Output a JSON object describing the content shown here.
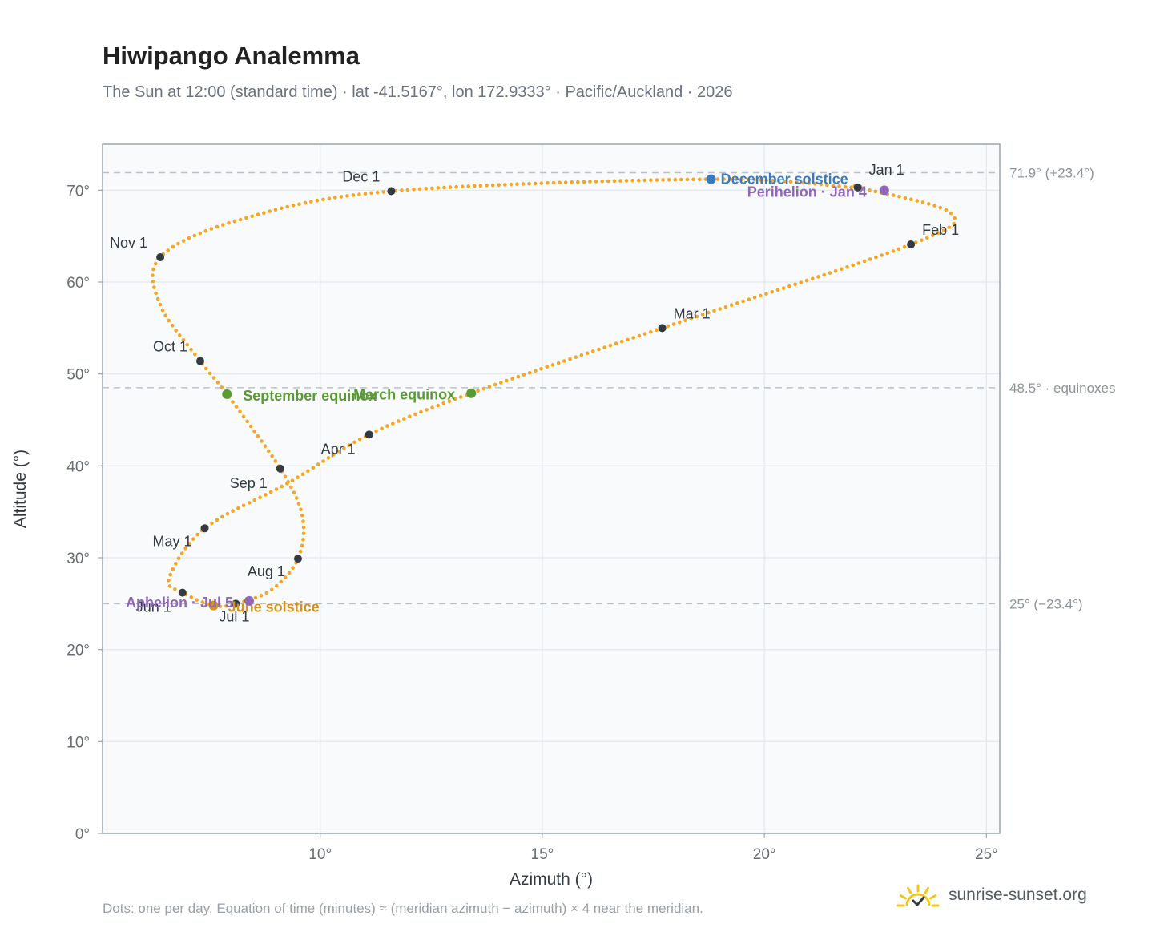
{
  "header": {
    "title": "Hiwipango Analemma",
    "subtitle": "The Sun at 12:00 (standard time) · lat -41.5167°, lon 172.9333° · Pacific/Auckland · 2026"
  },
  "footer": {
    "note": "Dots: one per day. Equation of time (minutes) ≈ (meridian azimuth − azimuth) × 4 near the meridian.",
    "brand": "sunrise-sunset.org"
  },
  "colors": {
    "path": "#f5a623",
    "month_dot": "#333a42",
    "equinox": "#5a9a34",
    "june_solstice": "#d4911c",
    "december_solstice": "#3a7abf",
    "apsis": "#8f68b8",
    "grid": "#e3e8ee",
    "plot_bg": "#f8fafc",
    "frame": "#9aa4b2",
    "ref_line": "#b8c2cd",
    "brand_sun": "#f5c518"
  },
  "chart_data": {
    "type": "scatter",
    "xlabel": "Azimuth (°)",
    "ylabel": "Altitude (°)",
    "xlim": [
      5.1,
      25.3
    ],
    "ylim": [
      0,
      75
    ],
    "xticks": [
      10,
      15,
      20,
      25
    ],
    "yticks": [
      0,
      10,
      20,
      30,
      40,
      50,
      60,
      70
    ],
    "x_tick_format": "{v}°",
    "y_tick_format": "{v}°",
    "grid": true,
    "series": [
      {
        "role": "daily-path",
        "note_ref": "one dot per day",
        "anchors": [
          {
            "date": "Jan 1",
            "azimuth": 22.1,
            "altitude": 70.3
          },
          {
            "date": "Jan 20",
            "azimuth": 24.2,
            "altitude": 67.5
          },
          {
            "date": "Feb 1",
            "azimuth": 23.3,
            "altitude": 64.1
          },
          {
            "date": "Mar 1",
            "azimuth": 17.7,
            "altitude": 55.0
          },
          {
            "date": "Mar 20",
            "azimuth": 13.4,
            "altitude": 47.9
          },
          {
            "date": "Apr 1",
            "azimuth": 11.1,
            "altitude": 43.4
          },
          {
            "date": "Apr 15",
            "azimuth": 9.3,
            "altitude": 38.2
          },
          {
            "date": "May 1",
            "azimuth": 7.4,
            "altitude": 33.2
          },
          {
            "date": "May 20",
            "azimuth": 6.6,
            "altitude": 27.8
          },
          {
            "date": "Jun 1",
            "azimuth": 6.9,
            "altitude": 26.2
          },
          {
            "date": "Jun 21",
            "azimuth": 7.6,
            "altitude": 24.8
          },
          {
            "date": "Jul 1",
            "azimuth": 8.1,
            "altitude": 25.0
          },
          {
            "date": "Jul 15",
            "azimuth": 8.9,
            "altitude": 26.5
          },
          {
            "date": "Aug 1",
            "azimuth": 9.5,
            "altitude": 29.9
          },
          {
            "date": "Aug 15",
            "azimuth": 9.6,
            "altitude": 34.5
          },
          {
            "date": "Sep 1",
            "azimuth": 9.1,
            "altitude": 39.7
          },
          {
            "date": "Sep 23",
            "azimuth": 7.9,
            "altitude": 47.8
          },
          {
            "date": "Oct 1",
            "azimuth": 7.3,
            "altitude": 51.4
          },
          {
            "date": "Oct 15",
            "azimuth": 6.4,
            "altitude": 57.5
          },
          {
            "date": "Nov 1",
            "azimuth": 6.4,
            "altitude": 62.7
          },
          {
            "date": "Nov 15",
            "azimuth": 8.2,
            "altitude": 66.8
          },
          {
            "date": "Dec 1",
            "azimuth": 11.6,
            "altitude": 69.9
          },
          {
            "date": "Dec 21",
            "azimuth": 18.8,
            "altitude": 71.2
          },
          {
            "date": "Dec 31",
            "azimuth": 22.0,
            "altitude": 70.3
          }
        ]
      }
    ],
    "month_markers": [
      {
        "label": "Jan 1",
        "azimuth": 22.1,
        "altitude": 70.3
      },
      {
        "label": "Feb 1",
        "azimuth": 23.3,
        "altitude": 64.1
      },
      {
        "label": "Mar 1",
        "azimuth": 17.7,
        "altitude": 55.0
      },
      {
        "label": "Apr 1",
        "azimuth": 11.1,
        "altitude": 43.4
      },
      {
        "label": "May 1",
        "azimuth": 7.4,
        "altitude": 33.2
      },
      {
        "label": "Jun 1",
        "azimuth": 6.9,
        "altitude": 26.2
      },
      {
        "label": "Jul 1",
        "azimuth": 8.1,
        "altitude": 25.0
      },
      {
        "label": "Aug 1",
        "azimuth": 9.5,
        "altitude": 29.9
      },
      {
        "label": "Sep 1",
        "azimuth": 9.1,
        "altitude": 39.7
      },
      {
        "label": "Oct 1",
        "azimuth": 7.3,
        "altitude": 51.4
      },
      {
        "label": "Nov 1",
        "azimuth": 6.4,
        "altitude": 62.7
      },
      {
        "label": "Dec 1",
        "azimuth": 11.6,
        "altitude": 69.9
      }
    ],
    "events": [
      {
        "label": "December solstice",
        "azimuth": 18.8,
        "altitude": 71.2,
        "kind": "december_solstice"
      },
      {
        "label": "June solstice",
        "azimuth": 7.6,
        "altitude": 24.8,
        "kind": "june_solstice"
      },
      {
        "label": "March equinox",
        "azimuth": 13.4,
        "altitude": 47.9,
        "kind": "equinox"
      },
      {
        "label": "September equinox",
        "azimuth": 7.9,
        "altitude": 47.8,
        "kind": "equinox"
      },
      {
        "label": "Perihelion · Jan 4",
        "azimuth": 22.7,
        "altitude": 70.0,
        "kind": "apsis"
      },
      {
        "label": "Aphelion · Jul 5",
        "azimuth": 8.4,
        "altitude": 25.3,
        "kind": "apsis"
      }
    ],
    "reference_lines": [
      {
        "altitude": 71.9,
        "label": "71.9° (+23.4°)"
      },
      {
        "altitude": 48.5,
        "label": "48.5° · equinoxes"
      },
      {
        "altitude": 25.0,
        "label": "25° (−23.4°)"
      }
    ]
  }
}
